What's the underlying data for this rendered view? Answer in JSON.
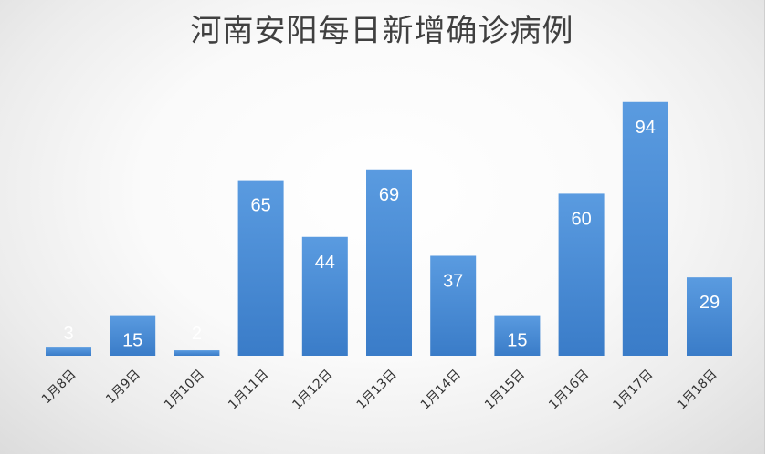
{
  "chart_data": {
    "type": "bar",
    "title": "河南安阳每日新增确诊病例",
    "categories": [
      "1月8日",
      "1月9日",
      "1月10日",
      "1月11日",
      "1月12日",
      "1月13日",
      "1月14日",
      "1月15日",
      "1月16日",
      "1月17日",
      "1月18日"
    ],
    "series": [
      {
        "values": [
          3,
          15,
          2,
          65,
          44,
          69,
          37,
          15,
          60,
          94,
          29
        ]
      }
    ],
    "ylim": [
      0,
      100
    ],
    "grid": false,
    "legend": "none",
    "colors": {
      "bar": "#4a8fd6",
      "bar_dark": "#2f72c0",
      "value_label": "#ffffff"
    }
  }
}
